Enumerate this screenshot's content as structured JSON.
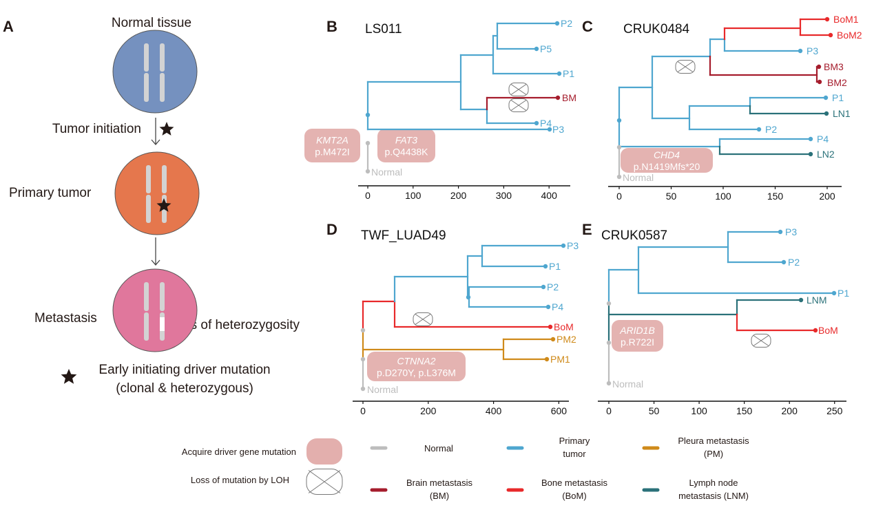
{
  "colors": {
    "normal": "#bdbdbd",
    "primary": "#4ea6cf",
    "brain": "#a51c2c",
    "bone": "#e8292a",
    "pleura": "#cf8a1a",
    "lymph": "#2a7179",
    "driver_box": "#e3afad",
    "normal_cell": "#7591bf",
    "tumor_cell": "#e5774d",
    "metastasis_cell": "#e0779c",
    "chromosome": "#d3d3d3"
  },
  "panel_a": {
    "label": "A",
    "normal_tissue": "Normal tissue",
    "tumor_initiation": "Tumor initiation",
    "primary_tumor": "Primary tumor",
    "metastasis": "Metastasis",
    "loh": "Loss of heterozygosity",
    "star_legend_line1": "Early initiating driver mutation",
    "star_legend_line2": "(clonal & heterozygous)"
  },
  "trees": [
    {
      "label": "B",
      "title": "LS011",
      "ticks": [
        "0",
        "100",
        "200",
        "300",
        "400"
      ],
      "tips": [
        "P2",
        "P5",
        "P1",
        "BM",
        "P4",
        "P3",
        "Normal"
      ],
      "mutations": [
        {
          "gene": "KMT2A",
          "change": "p.M472I"
        },
        {
          "gene": "FAT3",
          "change": "p.Q4438K"
        }
      ]
    },
    {
      "label": "C",
      "title": "CRUK0484",
      "ticks": [
        "0",
        "50",
        "100",
        "150",
        "200"
      ],
      "tips": [
        "BoM1",
        "BoM2",
        "P3",
        "BM3",
        "BM2",
        "P1",
        "LN1",
        "P2",
        "P4",
        "LN2",
        "Normal"
      ],
      "mutations": [
        {
          "gene": "CHD4",
          "change": "p.N1419Mfs*20"
        }
      ]
    },
    {
      "label": "D",
      "title": "TWF_LUAD49",
      "ticks": [
        "0",
        "200",
        "400",
        "600"
      ],
      "tips": [
        "P3",
        "P1",
        "P2",
        "P4",
        "BoM",
        "PM2",
        "PM1",
        "Normal"
      ],
      "mutations": [
        {
          "gene": "CTNNA2",
          "change": "p.D270Y, p.L376M"
        }
      ]
    },
    {
      "label": "E",
      "title": "CRUK0587",
      "ticks": [
        "0",
        "50",
        "100",
        "150",
        "200",
        "250"
      ],
      "tips": [
        "P3",
        "P2",
        "P1",
        "LNM",
        "BoM",
        "Normal"
      ],
      "mutations": [
        {
          "gene": "ARID1B",
          "change": "p.R722I"
        }
      ]
    }
  ],
  "legend": {
    "driver": "Acquire driver gene mutation",
    "loh": "Loss of mutation by LOH",
    "normal": [
      "Normal"
    ],
    "primary": [
      "Primary",
      "tumor"
    ],
    "pleura": [
      "Pleura metastasis",
      "(PM)"
    ],
    "brain": [
      "Brain metastasis",
      "(BM)"
    ],
    "bone": [
      "Bone metastasis",
      "(BoM)"
    ],
    "lymph": [
      "Lymph node",
      "metastasis (LNM)"
    ]
  }
}
